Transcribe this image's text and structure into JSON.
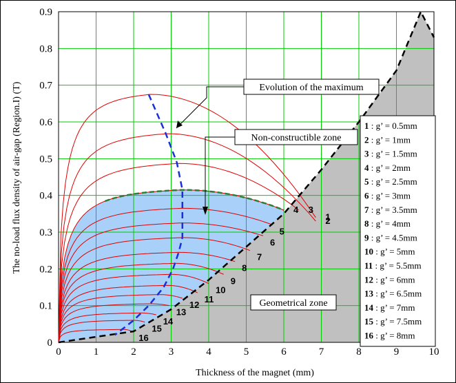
{
  "chart_data": {
    "type": "line",
    "xlabel": "Thickness of the magnet (mm)",
    "ylabel": "The no-load flux density of air-gap (Region.I) (T)",
    "xlim": [
      0,
      10
    ],
    "ylim": [
      0,
      0.9
    ],
    "xticks": [
      "0",
      "1",
      "2",
      "3",
      "4",
      "5",
      "6",
      "7",
      "8",
      "9",
      "10"
    ],
    "yticks": [
      "0",
      "0.1",
      "0.2",
      "0.3",
      "0.4",
      "0.5",
      "0.6",
      "0.7",
      "0.8",
      "0.9"
    ],
    "grid": true,
    "series": [
      {
        "name": "1",
        "g_mm": 0.5,
        "peak": [
          2.45,
          0.675
        ],
        "end": [
          6.85,
          0.34
        ]
      },
      {
        "name": "2",
        "g_mm": 1.0,
        "peak": [
          2.9,
          0.568
        ],
        "end": [
          6.85,
          0.33
        ]
      },
      {
        "name": "3",
        "g_mm": 1.5,
        "peak": [
          3.2,
          0.487
        ],
        "end": [
          6.4,
          0.36
        ]
      },
      {
        "name": "4",
        "g_mm": 2.0,
        "peak": [
          3.3,
          0.415
        ],
        "end": [
          6.0,
          0.36
        ]
      },
      {
        "name": "5",
        "g_mm": 2.5,
        "peak": [
          3.3,
          0.365
        ],
        "end": [
          5.7,
          0.32
        ]
      },
      {
        "name": "6",
        "g_mm": 3.0,
        "peak": [
          3.3,
          0.325
        ],
        "end": [
          5.45,
          0.29
        ]
      },
      {
        "name": "7",
        "g_mm": 3.5,
        "peak": [
          3.3,
          0.285
        ],
        "end": [
          5.1,
          0.25
        ]
      },
      {
        "name": "8",
        "g_mm": 4.0,
        "peak": [
          3.2,
          0.245
        ],
        "end": [
          4.7,
          0.22
        ]
      },
      {
        "name": "9",
        "g_mm": 4.5,
        "peak": [
          3.1,
          0.215
        ],
        "end": [
          4.4,
          0.185
        ]
      },
      {
        "name": "10",
        "g_mm": 5.0,
        "peak": [
          3.0,
          0.185
        ],
        "end": [
          4.0,
          0.16
        ]
      },
      {
        "name": "11",
        "g_mm": 5.5,
        "peak": [
          2.9,
          0.155
        ],
        "end": [
          3.7,
          0.135
        ]
      },
      {
        "name": "12",
        "g_mm": 6.0,
        "peak": [
          2.7,
          0.13
        ],
        "end": [
          3.3,
          0.12
        ]
      },
      {
        "name": "13",
        "g_mm": 6.5,
        "peak": [
          2.45,
          0.105
        ],
        "end": [
          2.95,
          0.1
        ]
      },
      {
        "name": "14",
        "g_mm": 7.0,
        "peak": [
          2.2,
          0.08
        ],
        "end": [
          2.6,
          0.075
        ]
      },
      {
        "name": "15",
        "g_mm": 7.5,
        "peak": [
          2.0,
          0.06
        ],
        "end": [
          2.3,
          0.055
        ]
      },
      {
        "name": "16",
        "g_mm": 8.0,
        "peak": [
          1.75,
          0.035
        ],
        "end": [
          1.95,
          0.03
        ]
      }
    ],
    "boundary": {
      "points": [
        [
          0,
          0
        ],
        [
          2.0,
          0.03
        ],
        [
          3.0,
          0.09
        ],
        [
          4.0,
          0.17
        ],
        [
          5.0,
          0.26
        ],
        [
          6.0,
          0.35
        ],
        [
          7.0,
          0.47
        ],
        [
          8.0,
          0.6
        ],
        [
          9.0,
          0.74
        ],
        [
          9.65,
          0.9
        ],
        [
          10.0,
          0.83
        ]
      ]
    },
    "max_locus": {
      "points": [
        [
          2.4,
          0.675
        ],
        [
          2.85,
          0.57
        ],
        [
          3.15,
          0.49
        ],
        [
          3.3,
          0.415
        ],
        [
          3.3,
          0.365
        ],
        [
          3.3,
          0.325
        ],
        [
          3.3,
          0.285
        ],
        [
          3.2,
          0.245
        ],
        [
          3.05,
          0.2
        ],
        [
          2.8,
          0.15
        ],
        [
          2.4,
          0.1
        ],
        [
          2.0,
          0.06
        ],
        [
          1.5,
          0.02
        ]
      ]
    },
    "annotations": {
      "evolution": "Evolution of the maximum",
      "nonconstructible": "Non-constructible zone",
      "geometrical": "Geometrical zone"
    },
    "legend": [
      {
        "num": "1",
        "text": " : g’ = 0.5mm",
        "highlight": false
      },
      {
        "num": "2",
        "text": " : g’ = 1mm",
        "highlight": false
      },
      {
        "num": "3",
        "text": " : g’ = 1.5mm",
        "highlight": false
      },
      {
        "num": "4",
        "text": " : g’ = 2mm",
        "highlight": true
      },
      {
        "num": "5",
        "text": " : g’ = 2.5mm",
        "highlight": false
      },
      {
        "num": "6",
        "text": " : g’ = 3mm",
        "highlight": false
      },
      {
        "num": "7",
        "text": " : g’ = 3.5mm",
        "highlight": false
      },
      {
        "num": "8",
        "text": " : g’ = 4mm",
        "highlight": false
      },
      {
        "num": "9",
        "text": " : g’ = 4.5mm",
        "highlight": false
      },
      {
        "num": "10",
        "text": " : g’ = 5mm",
        "highlight": false
      },
      {
        "num": "11",
        "text": " : g’ = 5.5mm",
        "highlight": false
      },
      {
        "num": "12",
        "text": " : g’ = 6mm",
        "highlight": false
      },
      {
        "num": "13",
        "text": " : g’ = 6.5mm",
        "highlight": false
      },
      {
        "num": "14",
        "text": " : g’ = 7mm",
        "highlight": false
      },
      {
        "num": "15",
        "text": " : g’ = 7.5mm",
        "highlight": false
      },
      {
        "num": "16",
        "text": " : g’ = 8mm",
        "highlight": false
      }
    ],
    "colors": {
      "curve": "#e00000",
      "grid": "#00cc00",
      "fill_zone": "#a8d0f8",
      "geometrical_zone": "#c0c0c0",
      "max_locus": "#1a2fd6",
      "dashed_green": "#2e7d32",
      "highlight_text": "#e03000"
    }
  }
}
